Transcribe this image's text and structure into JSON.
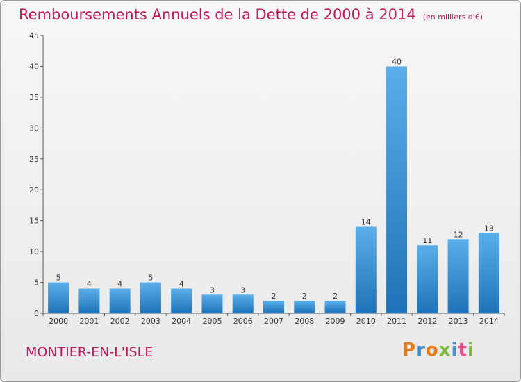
{
  "title": "Remboursements Annuels de la Dette de 2000 à 2014",
  "unit": "(en milliers d'€)",
  "place": "MONTIER-EN-L'ISLE",
  "logo": {
    "text": "Proxiti",
    "colors": [
      "#e57a17",
      "#3f8fd4",
      "#e57a17",
      "#7cb93d",
      "#3f8fd4",
      "#e84f8a",
      "#7cb93d"
    ]
  },
  "colors": {
    "title": "#c1185c",
    "bar_light": "#5aaeea",
    "bar_dark": "#1e73b8"
  },
  "chart_data": {
    "type": "bar",
    "title": "Remboursements Annuels de la Dette de 2000 à 2014",
    "categories": [
      "2000",
      "2001",
      "2002",
      "2003",
      "2004",
      "2005",
      "2006",
      "2007",
      "2008",
      "2009",
      "2010",
      "2011",
      "2012",
      "2013",
      "2014"
    ],
    "values": [
      5,
      4,
      4,
      5,
      4,
      3,
      3,
      2,
      2,
      2,
      14,
      40,
      11,
      12,
      13
    ],
    "ylim": [
      0,
      45
    ],
    "yticks": [
      0,
      5,
      10,
      15,
      20,
      25,
      30,
      35,
      40,
      45
    ],
    "grid": false,
    "xlabel": "",
    "ylabel": ""
  }
}
